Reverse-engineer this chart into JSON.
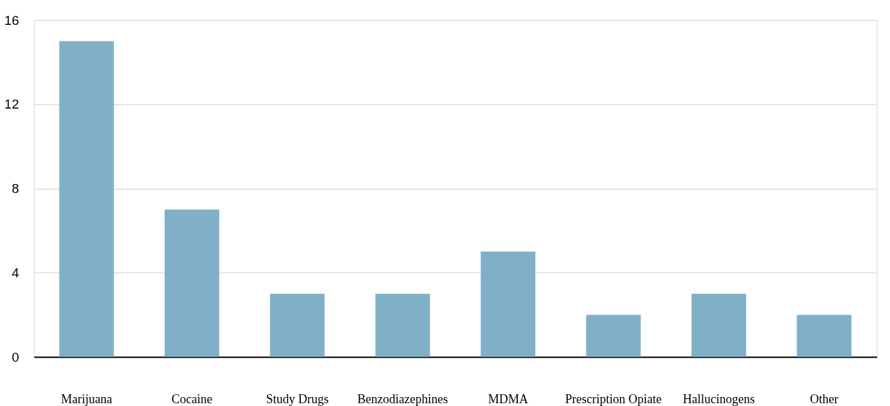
{
  "chart_data": {
    "type": "bar",
    "categories": [
      "Marijuana",
      "Cocaine",
      "Study Drugs",
      "Benzodiazephines",
      "MDMA",
      "Prescription Opiate",
      "Hallucinogens",
      "Other"
    ],
    "values": [
      15,
      7,
      3,
      3,
      5,
      2,
      3,
      2
    ],
    "color": "#80b0c8",
    "ylim": [
      0,
      16
    ],
    "yticks": [
      0,
      4,
      8,
      12,
      16
    ],
    "grid": "y"
  }
}
